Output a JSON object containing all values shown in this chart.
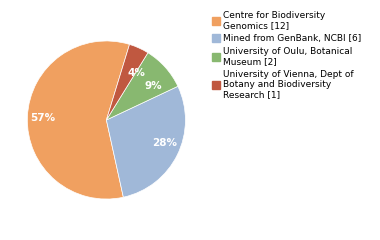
{
  "slices": [
    57,
    28,
    9,
    4
  ],
  "colors": [
    "#f0a060",
    "#a0b8d8",
    "#88b870",
    "#c05840"
  ],
  "pct_labels": [
    "57%",
    "28%",
    "9%",
    "4%"
  ],
  "legend_labels": [
    "Centre for Biodiversity\nGenomics [12]",
    "Mined from GenBank, NCBI [6]",
    "University of Oulu, Botanical\nMuseum [2]",
    "University of Vienna, Dept of\nBotany and Biodiversity\nResearch [1]"
  ],
  "startangle": 73,
  "legend_fontsize": 6.5,
  "pct_fontsize": 7.5,
  "background_color": "#ffffff"
}
